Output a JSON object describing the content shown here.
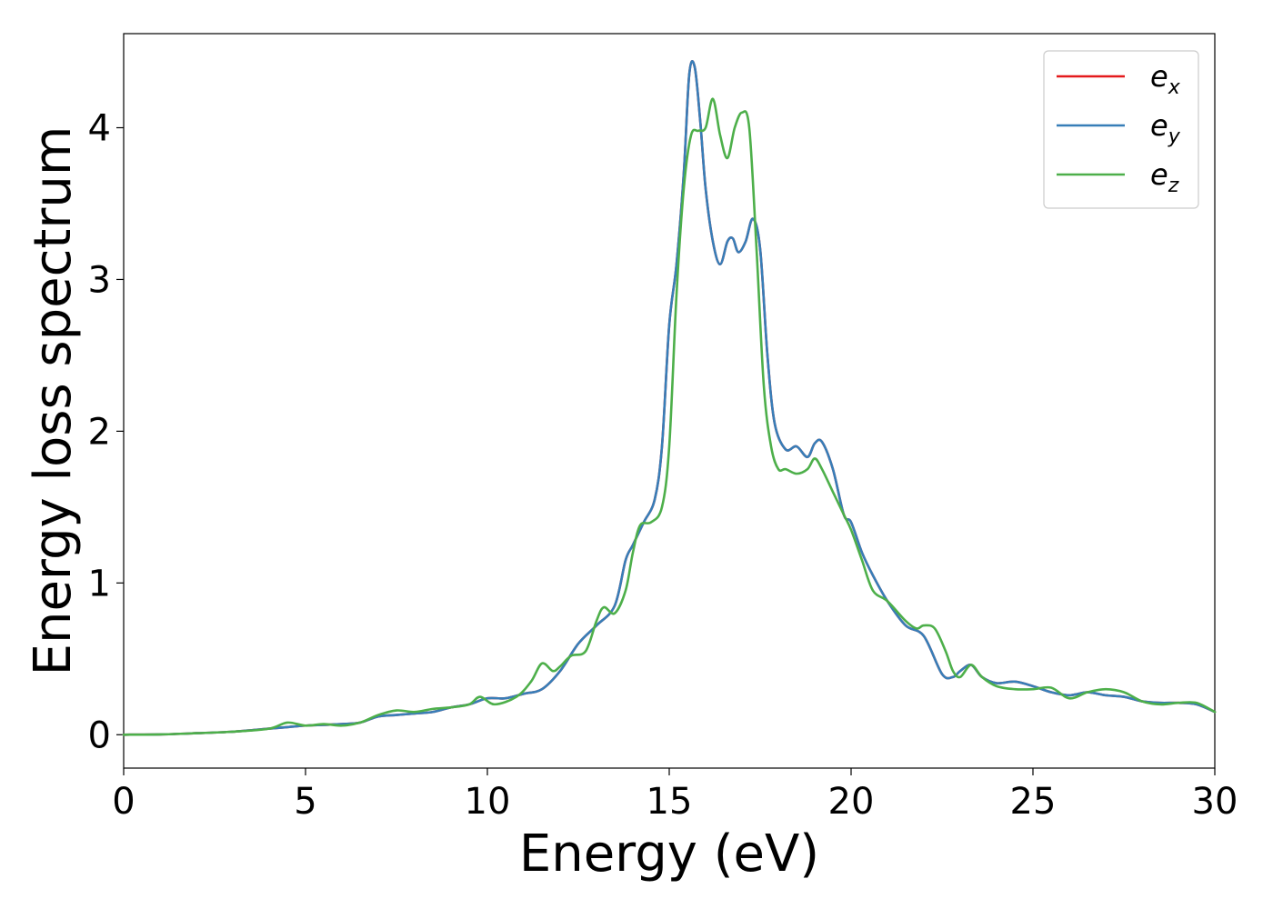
{
  "chart_data": {
    "type": "line",
    "title": "",
    "xlabel": "Energy (eV)",
    "ylabel": "Energy loss spectrum",
    "xlim": [
      0,
      30
    ],
    "ylim": [
      -0.22,
      4.62
    ],
    "xticks": [
      "0",
      "5",
      "10",
      "15",
      "20",
      "25",
      "30"
    ],
    "yticks": [
      "0",
      "1",
      "2",
      "3",
      "4"
    ],
    "grid": false,
    "legend_position": "top-right",
    "series": [
      {
        "name": "e_x",
        "base": "e",
        "sub": "x",
        "color": "#e41a1c",
        "x": [
          0,
          1,
          2,
          3,
          4,
          4.5,
          5,
          5.5,
          6,
          6.5,
          7,
          7.5,
          8,
          8.5,
          9,
          9.5,
          10,
          10.5,
          11,
          11.5,
          12,
          12.5,
          13,
          13.5,
          13.8,
          14,
          14.3,
          14.6,
          14.8,
          15,
          15.2,
          15.4,
          15.55,
          15.7,
          15.85,
          16,
          16.2,
          16.4,
          16.6,
          16.75,
          16.9,
          17.1,
          17.3,
          17.5,
          17.7,
          17.9,
          18.2,
          18.5,
          18.8,
          19,
          19.2,
          19.5,
          19.8,
          20,
          20.3,
          20.6,
          21,
          21.5,
          22,
          22.5,
          22.8,
          23,
          23.3,
          23.6,
          24,
          24.5,
          25,
          25.5,
          26,
          26.5,
          27,
          27.5,
          28,
          28.5,
          29,
          29.5,
          30
        ],
        "values": [
          0,
          0.002,
          0.01,
          0.02,
          0.04,
          0.05,
          0.06,
          0.065,
          0.07,
          0.08,
          0.12,
          0.13,
          0.14,
          0.15,
          0.18,
          0.2,
          0.24,
          0.24,
          0.27,
          0.3,
          0.42,
          0.6,
          0.72,
          0.85,
          1.15,
          1.25,
          1.4,
          1.55,
          1.9,
          2.7,
          3.1,
          3.7,
          4.35,
          4.4,
          4.05,
          3.6,
          3.25,
          3.1,
          3.25,
          3.27,
          3.18,
          3.25,
          3.4,
          3.2,
          2.5,
          2.05,
          1.88,
          1.9,
          1.83,
          1.92,
          1.93,
          1.75,
          1.45,
          1.4,
          1.2,
          1.05,
          0.88,
          0.72,
          0.65,
          0.4,
          0.38,
          0.42,
          0.46,
          0.38,
          0.34,
          0.35,
          0.32,
          0.28,
          0.26,
          0.28,
          0.26,
          0.25,
          0.22,
          0.21,
          0.21,
          0.2,
          0.15
        ]
      },
      {
        "name": "e_y",
        "base": "e",
        "sub": "y",
        "color": "#377eb8",
        "x": [
          0,
          1,
          2,
          3,
          4,
          4.5,
          5,
          5.5,
          6,
          6.5,
          7,
          7.5,
          8,
          8.5,
          9,
          9.5,
          10,
          10.5,
          11,
          11.5,
          12,
          12.5,
          13,
          13.5,
          13.8,
          14,
          14.3,
          14.6,
          14.8,
          15,
          15.2,
          15.4,
          15.55,
          15.7,
          15.85,
          16,
          16.2,
          16.4,
          16.6,
          16.75,
          16.9,
          17.1,
          17.3,
          17.5,
          17.7,
          17.9,
          18.2,
          18.5,
          18.8,
          19,
          19.2,
          19.5,
          19.8,
          20,
          20.3,
          20.6,
          21,
          21.5,
          22,
          22.5,
          22.8,
          23,
          23.3,
          23.6,
          24,
          24.5,
          25,
          25.5,
          26,
          26.5,
          27,
          27.5,
          28,
          28.5,
          29,
          29.5,
          30
        ],
        "values": [
          0,
          0.002,
          0.01,
          0.02,
          0.04,
          0.05,
          0.06,
          0.065,
          0.07,
          0.08,
          0.12,
          0.13,
          0.14,
          0.15,
          0.18,
          0.2,
          0.24,
          0.24,
          0.27,
          0.3,
          0.42,
          0.6,
          0.72,
          0.85,
          1.15,
          1.25,
          1.4,
          1.55,
          1.9,
          2.7,
          3.1,
          3.7,
          4.35,
          4.4,
          4.05,
          3.6,
          3.25,
          3.1,
          3.25,
          3.27,
          3.18,
          3.25,
          3.4,
          3.2,
          2.5,
          2.05,
          1.88,
          1.9,
          1.83,
          1.92,
          1.93,
          1.75,
          1.45,
          1.4,
          1.2,
          1.05,
          0.88,
          0.72,
          0.65,
          0.4,
          0.38,
          0.42,
          0.46,
          0.38,
          0.34,
          0.35,
          0.32,
          0.28,
          0.26,
          0.28,
          0.26,
          0.25,
          0.22,
          0.21,
          0.21,
          0.2,
          0.15
        ]
      },
      {
        "name": "e_z",
        "base": "e",
        "sub": "z",
        "color": "#4daf4a",
        "x": [
          0,
          1,
          2,
          3,
          4,
          4.5,
          5,
          5.5,
          6,
          6.5,
          7,
          7.5,
          8,
          8.5,
          9,
          9.5,
          9.8,
          10.2,
          10.8,
          11.2,
          11.5,
          11.8,
          12,
          12.3,
          12.7,
          13,
          13.2,
          13.5,
          13.8,
          14,
          14.2,
          14.5,
          14.8,
          15,
          15.2,
          15.4,
          15.6,
          15.8,
          16,
          16.2,
          16.4,
          16.6,
          16.8,
          17,
          17.2,
          17.4,
          17.6,
          17.8,
          18,
          18.2,
          18.5,
          18.8,
          19,
          19.2,
          19.5,
          19.8,
          20,
          20.3,
          20.6,
          21,
          21.5,
          21.8,
          22,
          22.3,
          22.6,
          22.8,
          23,
          23.3,
          23.6,
          24,
          24.5,
          25,
          25.5,
          26,
          26.5,
          27,
          27.5,
          28,
          28.5,
          29,
          29.5,
          30
        ],
        "values": [
          0,
          0.002,
          0.01,
          0.02,
          0.04,
          0.08,
          0.06,
          0.07,
          0.06,
          0.08,
          0.13,
          0.16,
          0.15,
          0.17,
          0.18,
          0.2,
          0.25,
          0.2,
          0.25,
          0.35,
          0.47,
          0.42,
          0.45,
          0.52,
          0.55,
          0.75,
          0.84,
          0.8,
          0.95,
          1.2,
          1.38,
          1.4,
          1.5,
          1.9,
          2.9,
          3.6,
          3.95,
          3.98,
          4.0,
          4.19,
          3.95,
          3.8,
          4.0,
          4.1,
          4.0,
          3.2,
          2.3,
          1.9,
          1.75,
          1.75,
          1.72,
          1.75,
          1.82,
          1.75,
          1.6,
          1.45,
          1.35,
          1.15,
          0.95,
          0.88,
          0.75,
          0.7,
          0.72,
          0.7,
          0.55,
          0.42,
          0.38,
          0.46,
          0.38,
          0.32,
          0.3,
          0.3,
          0.31,
          0.24,
          0.28,
          0.3,
          0.28,
          0.22,
          0.2,
          0.21,
          0.21,
          0.15
        ]
      }
    ]
  }
}
